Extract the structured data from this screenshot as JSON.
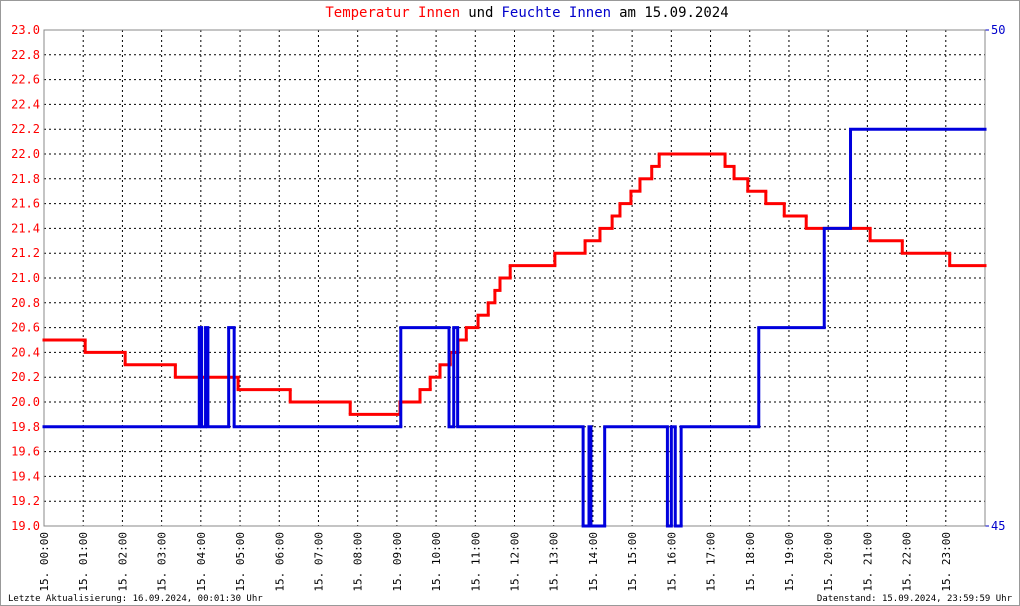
{
  "chart_data": {
    "type": "line",
    "title_parts": [
      {
        "text": "Temperatur Innen",
        "color": "#ff0000"
      },
      {
        "text": "und",
        "color": "#000000"
      },
      {
        "text": "Feuchte Innen",
        "color": "#0000cc"
      },
      {
        "text": "am 15.09.2024",
        "color": "#000000"
      }
    ],
    "footer_left": "Letzte Aktualisierung: 16.09.2024, 00:01:30 Uhr",
    "footer_right": "Datenstand: 15.09.2024, 23:59:59 Uhr",
    "xlim": [
      0,
      24
    ],
    "xticks": [
      {
        "value": 0,
        "label": "15. 00:00"
      },
      {
        "value": 1,
        "label": "15. 01:00"
      },
      {
        "value": 2,
        "label": "15. 02:00"
      },
      {
        "value": 3,
        "label": "15. 03:00"
      },
      {
        "value": 4,
        "label": "15. 04:00"
      },
      {
        "value": 5,
        "label": "15. 05:00"
      },
      {
        "value": 6,
        "label": "15. 06:00"
      },
      {
        "value": 7,
        "label": "15. 07:00"
      },
      {
        "value": 8,
        "label": "15. 08:00"
      },
      {
        "value": 9,
        "label": "15. 09:00"
      },
      {
        "value": 10,
        "label": "15. 10:00"
      },
      {
        "value": 11,
        "label": "15. 11:00"
      },
      {
        "value": 12,
        "label": "15. 12:00"
      },
      {
        "value": 13,
        "label": "15. 13:00"
      },
      {
        "value": 14,
        "label": "15. 14:00"
      },
      {
        "value": 15,
        "label": "15. 15:00"
      },
      {
        "value": 16,
        "label": "15. 16:00"
      },
      {
        "value": 17,
        "label": "15. 17:00"
      },
      {
        "value": 18,
        "label": "15. 18:00"
      },
      {
        "value": 19,
        "label": "15. 19:00"
      },
      {
        "value": 20,
        "label": "15. 20:00"
      },
      {
        "value": 21,
        "label": "15. 21:00"
      },
      {
        "value": 22,
        "label": "15. 22:00"
      },
      {
        "value": 23,
        "label": "15. 23:00"
      }
    ],
    "ylim": [
      19.0,
      23.0
    ],
    "yticks": [
      {
        "value": 19.0,
        "label": "19.0"
      },
      19.2,
      19.4,
      19.6,
      19.8,
      {
        "value": 20.0,
        "label": "20.0"
      },
      20.2,
      20.4,
      20.6,
      20.8,
      {
        "value": 21.0,
        "label": "21.0"
      },
      21.2,
      21.4,
      21.6,
      21.8,
      {
        "value": 22.0,
        "label": "22.0"
      },
      22.2,
      22.4,
      22.6,
      22.8,
      {
        "value": 23.0,
        "label": "23.0"
      }
    ],
    "y2lim": [
      45,
      50
    ],
    "y2ticks": [
      45,
      50
    ],
    "grid": true,
    "step": true,
    "series": [
      {
        "name": "Temperatur Innen",
        "color": "#ff0000",
        "axis": "y",
        "x": [
          0,
          1.05,
          2.07,
          3.35,
          4.95,
          6.28,
          7.81,
          9.08,
          9.59,
          9.85,
          10.1,
          10.36,
          10.56,
          10.77,
          11.07,
          11.33,
          11.5,
          11.63,
          11.89,
          13.03,
          13.8,
          14.18,
          14.49,
          14.69,
          14.97,
          15.2,
          15.5,
          15.69,
          17.37,
          17.6,
          17.95,
          18.41,
          18.88,
          19.44,
          21.07,
          21.89,
          23.1
        ],
        "values": [
          20.5,
          20.4,
          20.3,
          20.2,
          20.1,
          20.0,
          19.9,
          20.0,
          20.1,
          20.2,
          20.3,
          20.4,
          20.5,
          20.6,
          20.7,
          20.8,
          20.9,
          21.0,
          21.1,
          21.2,
          21.3,
          21.4,
          21.5,
          21.6,
          21.7,
          21.8,
          21.9,
          22.0,
          21.9,
          21.8,
          21.7,
          21.6,
          21.5,
          21.4,
          21.3,
          21.2,
          21.1
        ]
      },
      {
        "name": "Feuchte Innen",
        "color": "#0000dd",
        "axis": "y2",
        "x": [
          0,
          3.96,
          4.02,
          4.12,
          4.18,
          4.71,
          4.85,
          9.1,
          10.33,
          10.45,
          10.55,
          13.75,
          13.9,
          13.95,
          14.3,
          15.9,
          16.0,
          16.1,
          16.25,
          18.23,
          19.9,
          20.57
        ],
        "values": [
          46,
          47,
          46,
          47,
          46,
          47,
          46,
          47,
          46,
          47,
          46,
          45,
          46,
          45,
          46,
          45,
          46,
          45,
          46,
          47,
          48,
          49
        ]
      }
    ]
  }
}
